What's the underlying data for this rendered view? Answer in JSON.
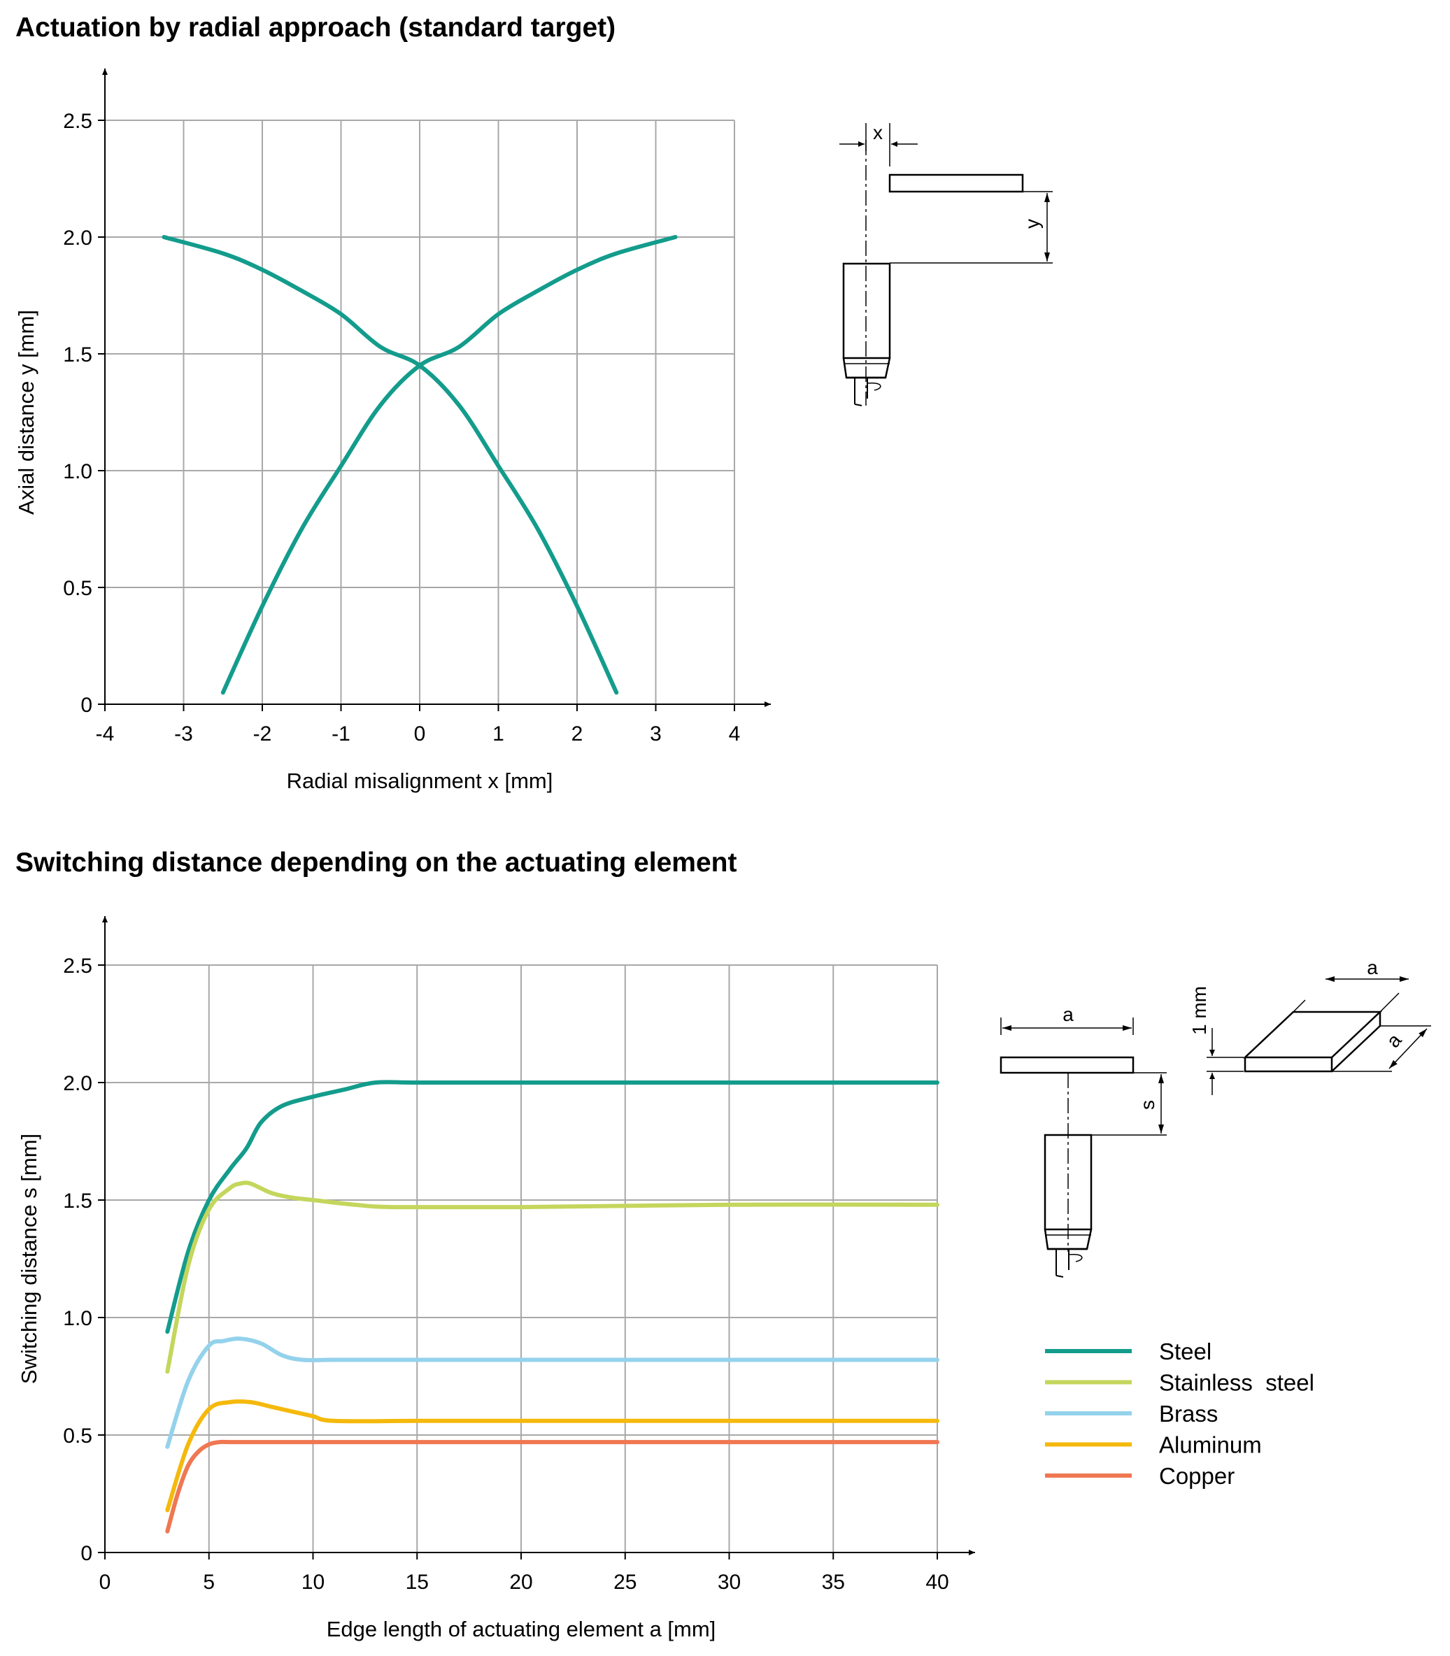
{
  "chart_data": [
    {
      "type": "line",
      "title": "Actuation by radial approach (standard target)",
      "xlabel": "Radial misalignment x [mm]",
      "ylabel": "Axial distance y [mm]",
      "xlim": [
        -4,
        4
      ],
      "ylim": [
        0,
        2.5
      ],
      "xticks": [
        "-4",
        "-3",
        "-2",
        "-1",
        "0",
        "1",
        "2",
        "3",
        "4"
      ],
      "yticks": [
        "0",
        "0.5",
        "1.0",
        "1.5",
        "2.0",
        "2.5"
      ],
      "grid": true,
      "series": [
        {
          "color": "#139c8c",
          "x": [
            -3.25,
            -2.5,
            -2.0,
            -1.5,
            -1.0,
            -0.5,
            0.0,
            0.5,
            1.0,
            1.5,
            2.0,
            2.5
          ],
          "y": [
            2.0,
            1.93,
            1.86,
            1.77,
            1.67,
            1.53,
            1.45,
            1.28,
            1.02,
            0.75,
            0.42,
            0.05
          ]
        },
        {
          "color": "#139c8c",
          "x": [
            -2.5,
            -2.0,
            -1.5,
            -1.0,
            -0.5,
            0.0,
            0.5,
            1.0,
            1.5,
            2.0,
            2.5,
            3.25
          ],
          "y": [
            0.05,
            0.42,
            0.75,
            1.02,
            1.28,
            1.45,
            1.53,
            1.67,
            1.77,
            1.86,
            1.93,
            2.0
          ]
        }
      ],
      "diagram": {
        "x_label": "x",
        "y_label": "y"
      }
    },
    {
      "type": "line",
      "title": "Switching distance depending on the actuating element",
      "xlabel": "Edge length of actuating element a [mm]",
      "ylabel": "Switching distance s [mm]",
      "xlim": [
        0,
        40
      ],
      "ylim": [
        0,
        2.5
      ],
      "xticks": [
        "0",
        "5",
        "10",
        "15",
        "20",
        "25",
        "30",
        "35",
        "40"
      ],
      "yticks": [
        "0",
        "0.5",
        "1.0",
        "1.5",
        "2.0",
        "2.5"
      ],
      "grid": true,
      "legend_position": "right",
      "series": [
        {
          "name": "Steel",
          "color": "#139c8c",
          "x": [
            3,
            4,
            5,
            6,
            6.8,
            7.5,
            8.5,
            10,
            11.5,
            13,
            15,
            20,
            25,
            30,
            35,
            40
          ],
          "y": [
            0.94,
            1.28,
            1.5,
            1.63,
            1.72,
            1.83,
            1.9,
            1.94,
            1.97,
            2.0,
            2.0,
            2.0,
            2.0,
            2.0,
            2.0,
            2.0
          ]
        },
        {
          "name": "Stainless  steel",
          "color": "#c4d65c",
          "x": [
            3,
            4,
            5,
            6,
            6.5,
            7,
            8,
            9,
            10,
            12,
            14,
            20,
            30,
            40
          ],
          "y": [
            0.77,
            1.22,
            1.46,
            1.55,
            1.57,
            1.57,
            1.53,
            1.51,
            1.5,
            1.48,
            1.47,
            1.47,
            1.48,
            1.48
          ]
        },
        {
          "name": "Brass",
          "color": "#94d2ec",
          "x": [
            3,
            4,
            5,
            5.7,
            6.5,
            7.5,
            8.5,
            9.5,
            11,
            15,
            20,
            30,
            40
          ],
          "y": [
            0.45,
            0.73,
            0.88,
            0.9,
            0.91,
            0.89,
            0.84,
            0.82,
            0.82,
            0.82,
            0.82,
            0.82,
            0.82
          ]
        },
        {
          "name": "Aluminum",
          "color": "#f5b90c",
          "x": [
            3,
            4,
            5,
            6,
            7,
            8,
            9,
            10,
            11,
            15,
            20,
            30,
            40
          ],
          "y": [
            0.18,
            0.46,
            0.61,
            0.64,
            0.64,
            0.62,
            0.6,
            0.58,
            0.56,
            0.56,
            0.56,
            0.56,
            0.56
          ]
        },
        {
          "name": "Copper",
          "color": "#ef7752",
          "x": [
            3,
            3.5,
            4,
            4.5,
            5,
            5.5,
            6,
            8,
            10,
            15,
            20,
            30,
            40
          ],
          "y": [
            0.09,
            0.25,
            0.37,
            0.43,
            0.46,
            0.47,
            0.47,
            0.47,
            0.47,
            0.47,
            0.47,
            0.47,
            0.47
          ]
        }
      ],
      "diagram": {
        "a_label": "a",
        "s_label": "s",
        "thickness_label": "1 mm"
      }
    }
  ]
}
